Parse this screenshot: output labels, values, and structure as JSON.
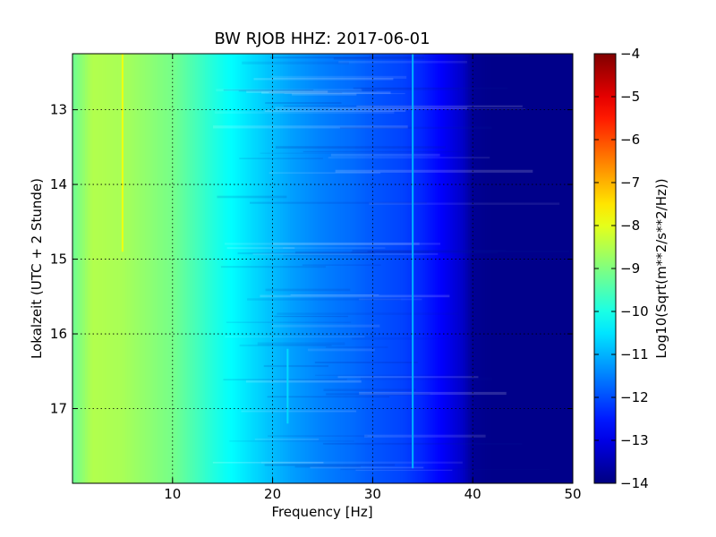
{
  "chart_data": {
    "type": "heatmap",
    "title": "BW RJOB HHZ: 2017-06-01",
    "xlabel": "Frequency [Hz]",
    "ylabel": "Lokalzeit (UTC + 2 Stunde)",
    "xlim": [
      0,
      50
    ],
    "ylim": [
      12.25,
      18.0
    ],
    "y_inverted": true,
    "x_ticks": [
      10,
      20,
      30,
      40,
      50
    ],
    "y_ticks": [
      13,
      14,
      15,
      16,
      17
    ],
    "grid": true,
    "colormap": "jet",
    "colorbar": {
      "label": "Log10(Sqrt(m**2/s**2/Hz))",
      "min": -14,
      "max": -4,
      "ticks": [
        -4,
        -5,
        -6,
        -7,
        -8,
        -9,
        -10,
        -11,
        -12,
        -13,
        -14
      ]
    },
    "spectral_profile": {
      "frequency_hz": [
        0,
        2,
        5,
        8,
        10,
        12,
        15,
        18,
        20,
        22,
        25,
        28,
        30,
        33,
        35,
        37,
        39,
        40,
        42,
        45,
        50
      ],
      "log10_amplitude": [
        -9.2,
        -8.5,
        -8.6,
        -8.9,
        -9.1,
        -9.5,
        -10.1,
        -10.6,
        -10.9,
        -11.2,
        -11.5,
        -11.7,
        -11.9,
        -12.1,
        -12.4,
        -12.8,
        -13.3,
        -13.8,
        -13.9,
        -13.9,
        -13.9
      ]
    },
    "features": [
      {
        "frequency_hz": 5,
        "time_start": 12.25,
        "time_end": 14.9,
        "log10_amplitude": -7.9
      },
      {
        "frequency_hz": 34,
        "time_start": 12.25,
        "time_end": 17.8,
        "log10_amplitude": -11.0
      },
      {
        "frequency_hz": 21.5,
        "time_start": 16.2,
        "time_end": 17.2,
        "log10_amplitude": -10.6
      }
    ]
  }
}
